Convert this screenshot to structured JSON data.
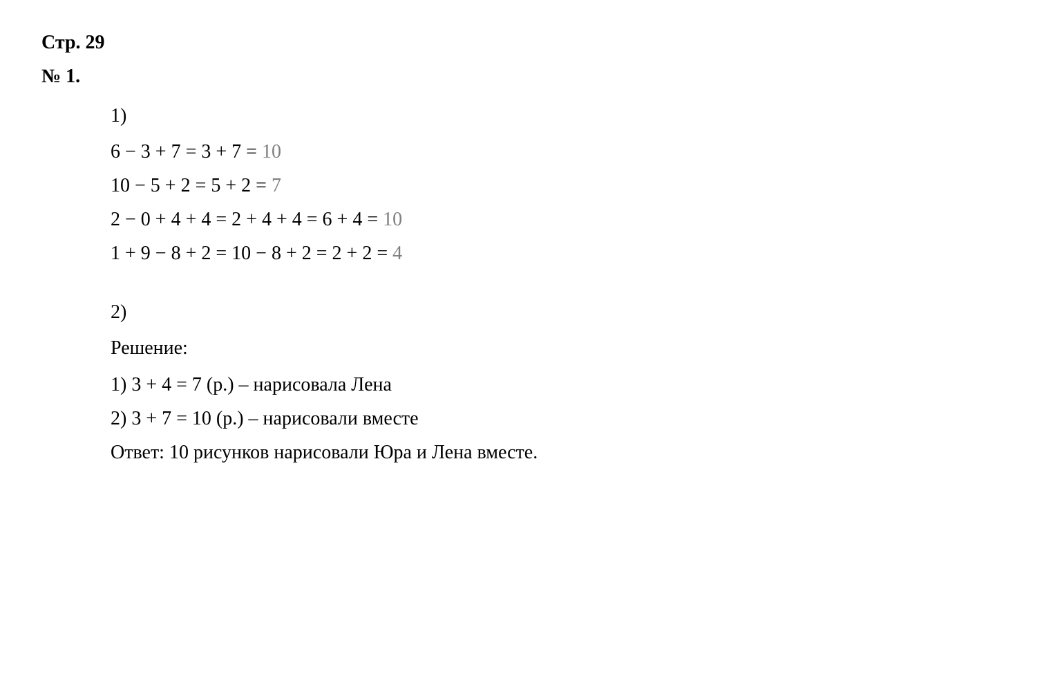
{
  "header": {
    "page_ref": "Стр. 29",
    "problem_number": "№ 1."
  },
  "part1": {
    "label": "1)",
    "equations": [
      {
        "lhs": "6 − 3 + 7 = 3 + 7 = ",
        "answer": "10"
      },
      {
        "lhs": "10 − 5 + 2 = 5 + 2 = ",
        "answer": "7"
      },
      {
        "lhs": "2 − 0 + 4 + 4 = 2 + 4 + 4 = 6 + 4 = ",
        "answer": "10"
      },
      {
        "lhs": "1 + 9 − 8 + 2 = 10 − 8 + 2 = 2 + 2 = ",
        "answer": "4"
      }
    ]
  },
  "part2": {
    "label": "2)",
    "solution_label": "Решение:",
    "steps": [
      "1) 3 + 4 = 7 (р.) – нарисовала Лена",
      "2) 3 + 7 = 10 (р.) – нарисовали вместе"
    ],
    "answer": "Ответ: 10 рисунков нарисовали Юра и Лена вместе."
  },
  "colors": {
    "text": "#000000",
    "answer_gray": "#808080",
    "background": "#ffffff"
  },
  "typography": {
    "font_family": "Times New Roman",
    "base_fontsize": 28,
    "bold_weight": 700
  }
}
